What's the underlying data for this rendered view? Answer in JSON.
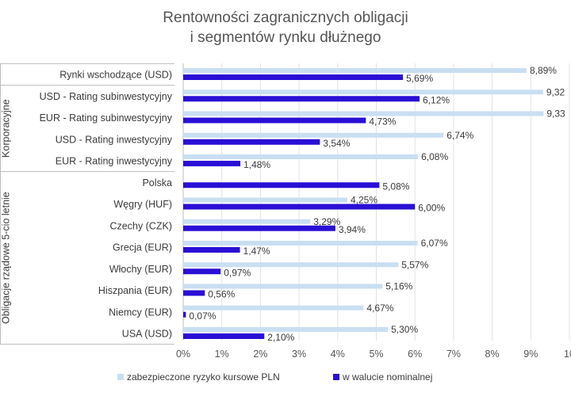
{
  "chart_data": {
    "type": "bar",
    "orientation": "horizontal",
    "title_lines": [
      "Rentowności zagranicznych obligacji",
      "i segmentów rynku dłużnego"
    ],
    "categories": [
      "Rynki wschodzące (USD)",
      "USD - Rating subinwestycyjny",
      "EUR - Rating subinwestycyjny",
      "USD - Rating inwestycyjny",
      "EUR - Rating inwestycyjny",
      "Polska",
      "Węgry (HUF)",
      "Czechy (CZK)",
      "Grecja (EUR)",
      "Włochy (EUR)",
      "Hiszpania (EUR)",
      "Niemcy (EUR)",
      "USA (USD)"
    ],
    "groups": [
      {
        "label": "Korporacyjne",
        "start": 1,
        "end": 4
      },
      {
        "label": "Obligacje rządowe 5-cio letnie",
        "start": 5,
        "end": 12
      }
    ],
    "series": [
      {
        "name": "zabezpieczone ryzyko kursowe PLN",
        "color": "#c9dff2",
        "values": [
          8.89,
          9.32,
          9.33,
          6.74,
          6.08,
          null,
          4.25,
          3.29,
          6.07,
          5.57,
          5.16,
          4.67,
          5.3
        ],
        "labels": [
          "8,89%",
          "9,32",
          "9,33",
          "6,74%",
          "6,08%",
          "",
          "4,25%",
          "3,29%",
          "6,07%",
          "5,57%",
          "5,16%",
          "4,67%",
          "5,30%"
        ]
      },
      {
        "name": "w walucie nominalnej",
        "color": "#2a0fd6",
        "values": [
          5.69,
          6.12,
          4.73,
          3.54,
          1.48,
          5.08,
          6.0,
          3.94,
          1.47,
          0.97,
          0.56,
          0.07,
          2.1
        ],
        "labels": [
          "5,69%",
          "6,12%",
          "4,73%",
          "3,54%",
          "1,48%",
          "5,08%",
          "6,00%",
          "3,94%",
          "1,47%",
          "0,97%",
          "0,56%",
          "0,07%",
          "2,10%"
        ]
      }
    ],
    "x_ticks": [
      "0%",
      "1%",
      "2%",
      "3%",
      "4%",
      "5%",
      "6%",
      "7%",
      "8%",
      "9%",
      "10"
    ],
    "xlim": [
      0,
      10
    ],
    "grid": true,
    "legend_position": "bottom"
  }
}
